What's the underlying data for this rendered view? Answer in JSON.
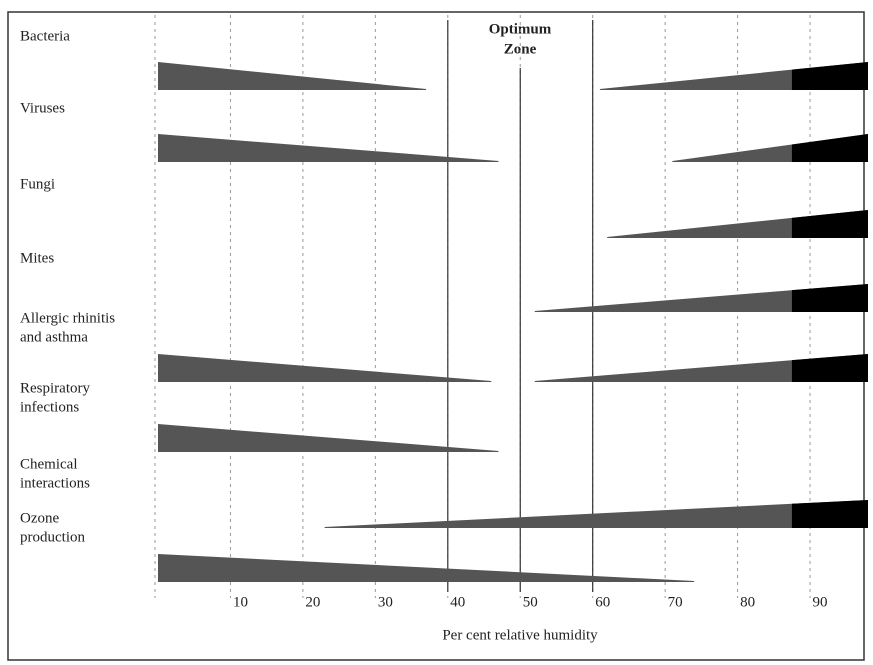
{
  "chart_data": {
    "type": "wedge",
    "x_label": "Per cent relative humidity",
    "annotation": [
      "Optimum",
      "Zone"
    ],
    "zone": {
      "from": 40,
      "center": 50,
      "to": 60
    },
    "xlim": [
      0,
      98
    ],
    "xticks": [
      10,
      20,
      30,
      40,
      50,
      60,
      70,
      80,
      90
    ],
    "grid": true,
    "color": "#555555",
    "dark_color": "#000000",
    "dark_from": 87.5,
    "rows": [
      {
        "label": [
          "Bacteria"
        ],
        "falling": [
          0,
          37
        ],
        "rising": [
          61,
          98
        ]
      },
      {
        "label": [
          "Viruses"
        ],
        "falling": [
          0,
          47
        ],
        "rising": [
          71,
          98
        ]
      },
      {
        "label": [
          "Fungi"
        ],
        "rising": [
          62,
          98
        ]
      },
      {
        "label": [
          "Mites"
        ],
        "rising": [
          52,
          98
        ]
      },
      {
        "label": [
          "Allergic rhinitis",
          "and asthma"
        ],
        "falling": [
          0,
          46
        ],
        "rising": [
          52,
          98
        ]
      },
      {
        "label": [
          "Respiratory",
          "infections"
        ],
        "falling": [
          0,
          47
        ]
      },
      {
        "label": [
          "Chemical",
          "interactions"
        ],
        "rising": [
          23,
          98
        ]
      },
      {
        "label": [
          "Ozone",
          "production"
        ],
        "falling": [
          0,
          74
        ]
      }
    ]
  }
}
